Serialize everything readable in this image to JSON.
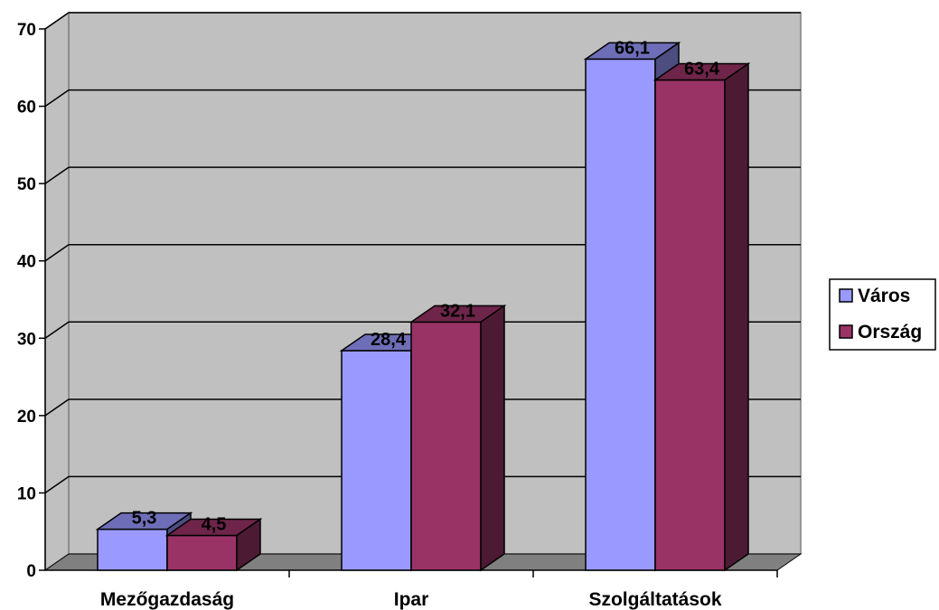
{
  "chart_data": {
    "type": "bar",
    "title": "",
    "xlabel": "",
    "ylabel": "",
    "categories": [
      "Mezőgazdaság",
      "Ipar",
      "Szolgáltatások"
    ],
    "series": [
      {
        "name": "Város",
        "values": [
          5.3,
          28.4,
          66.1
        ],
        "value_labels": [
          "5,3",
          "28,4",
          "66,1"
        ],
        "color": "#9999ff"
      },
      {
        "name": "Ország",
        "values": [
          4.5,
          32.1,
          63.4
        ],
        "value_labels": [
          "4,5",
          "32,1",
          "63,4"
        ],
        "color": "#993366"
      }
    ],
    "ylim": [
      0,
      70
    ],
    "yticks": [
      0,
      10,
      20,
      30,
      40,
      50,
      60,
      70
    ],
    "grid": true,
    "legend": "right",
    "wall_color": "#c0c0c0",
    "floor_color": "#808080"
  }
}
